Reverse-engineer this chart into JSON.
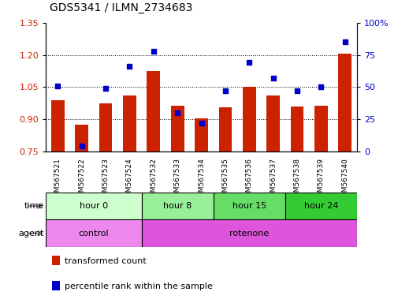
{
  "title": "GDS5341 / ILMN_2734683",
  "samples": [
    "GSM567521",
    "GSM567522",
    "GSM567523",
    "GSM567524",
    "GSM567532",
    "GSM567533",
    "GSM567534",
    "GSM567535",
    "GSM567536",
    "GSM567537",
    "GSM567538",
    "GSM567539",
    "GSM567540"
  ],
  "transformed_count": [
    0.99,
    0.875,
    0.975,
    1.01,
    1.125,
    0.965,
    0.905,
    0.955,
    1.05,
    1.01,
    0.96,
    0.965,
    1.205
  ],
  "percentile_rank": [
    51,
    4,
    49,
    66,
    78,
    30,
    22,
    47,
    69,
    57,
    47,
    50,
    85
  ],
  "ylim_left": [
    0.75,
    1.35
  ],
  "ylim_right": [
    0,
    100
  ],
  "yticks_left": [
    0.75,
    0.9,
    1.05,
    1.2,
    1.35
  ],
  "yticks_right": [
    0,
    25,
    50,
    75,
    100
  ],
  "ytick_labels_right": [
    "0",
    "25",
    "50",
    "75",
    "100%"
  ],
  "bar_color": "#cc2200",
  "dot_color": "#0000cc",
  "grid_color": "#000000",
  "time_groups": [
    {
      "label": "hour 0",
      "start": 0,
      "end": 4,
      "color": "#ccffcc"
    },
    {
      "label": "hour 8",
      "start": 4,
      "end": 7,
      "color": "#99ee99"
    },
    {
      "label": "hour 15",
      "start": 7,
      "end": 10,
      "color": "#66dd66"
    },
    {
      "label": "hour 24",
      "start": 10,
      "end": 13,
      "color": "#33cc33"
    }
  ],
  "agent_groups": [
    {
      "label": "control",
      "start": 0,
      "end": 4,
      "color": "#ee88ee"
    },
    {
      "label": "rotenone",
      "start": 4,
      "end": 13,
      "color": "#dd55dd"
    }
  ],
  "legend_items": [
    {
      "label": "transformed count",
      "color": "#cc2200"
    },
    {
      "label": "percentile rank within the sample",
      "color": "#0000cc"
    }
  ],
  "background_color": "#ffffff",
  "tick_label_color_left": "#cc2200",
  "tick_label_color_right": "#0000cc",
  "sample_col_bg": "#dddddd"
}
